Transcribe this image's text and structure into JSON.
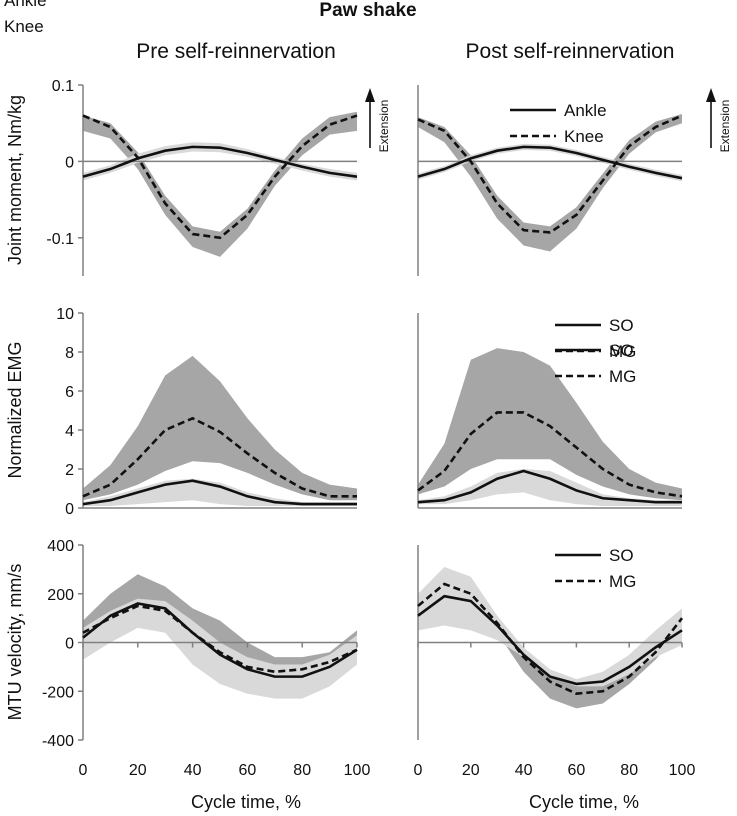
{
  "figure": {
    "title": "Paw shake",
    "column_titles": [
      "Pre self-reinnervation",
      "Post self-reinnervation"
    ],
    "xlabel": "Cycle time, %",
    "extension_label": "Extension"
  },
  "chart_data": [
    {
      "id": "moment-pre",
      "type": "line",
      "title": "Pre self-reinnervation",
      "ylabel": "Joint moment, Nm/kg",
      "ylim": [
        -0.15,
        0.1
      ],
      "yticks": [
        -0.1,
        0,
        0.1
      ],
      "ytick_labels": [
        "-0.1",
        "0",
        "0.1"
      ],
      "xlim": [
        0,
        100
      ],
      "xticks": [],
      "xtick_labels": [],
      "legend": "top-right",
      "series": [
        {
          "name": "Ankle",
          "style": "solid",
          "x": [
            0,
            10,
            20,
            30,
            40,
            50,
            60,
            70,
            80,
            90,
            100
          ],
          "y": [
            -0.02,
            -0.01,
            0.004,
            0.014,
            0.019,
            0.018,
            0.011,
            0.002,
            -0.007,
            -0.015,
            -0.02
          ],
          "band_color": "#d9d9d9",
          "band_upper": [
            -0.015,
            -0.005,
            0.01,
            0.02,
            0.025,
            0.024,
            0.016,
            0.006,
            -0.003,
            -0.01,
            -0.015
          ],
          "band_lower": [
            -0.025,
            -0.015,
            -0.002,
            0.008,
            0.013,
            0.012,
            0.006,
            -0.003,
            -0.012,
            -0.02,
            -0.025
          ]
        },
        {
          "name": "Knee",
          "style": "dashed",
          "x": [
            0,
            10,
            20,
            30,
            40,
            50,
            60,
            70,
            80,
            90,
            100
          ],
          "y": [
            0.06,
            0.045,
            0.005,
            -0.055,
            -0.095,
            -0.1,
            -0.07,
            -0.02,
            0.02,
            0.048,
            0.06
          ],
          "band_color": "#a6a6a6",
          "band_upper": [
            0.06,
            0.05,
            0.012,
            -0.045,
            -0.085,
            -0.092,
            -0.062,
            -0.012,
            0.03,
            0.058,
            0.065
          ],
          "band_lower": [
            0.04,
            0.03,
            -0.01,
            -0.07,
            -0.112,
            -0.125,
            -0.088,
            -0.032,
            0.008,
            0.035,
            0.04
          ]
        }
      ]
    },
    {
      "id": "moment-post",
      "type": "line",
      "title": "Post self-reinnervation",
      "ylabel": "",
      "ylim": [
        -0.15,
        0.1
      ],
      "yticks": [],
      "ytick_labels": [],
      "xlim": [
        0,
        100
      ],
      "xticks": [],
      "xtick_labels": [],
      "legend": "top-right",
      "series": [
        {
          "name": "Ankle",
          "style": "solid",
          "x": [
            0,
            10,
            20,
            30,
            40,
            50,
            60,
            70,
            80,
            90,
            100
          ],
          "y": [
            -0.02,
            -0.01,
            0.004,
            0.014,
            0.019,
            0.018,
            0.011,
            0.002,
            -0.007,
            -0.015,
            -0.022
          ],
          "band_color": "#d9d9d9",
          "band_upper": [
            -0.016,
            -0.006,
            0.008,
            0.018,
            0.023,
            0.022,
            0.015,
            0.006,
            -0.003,
            -0.011,
            -0.018
          ],
          "band_lower": [
            -0.024,
            -0.014,
            0.0,
            0.01,
            0.015,
            0.014,
            0.007,
            -0.002,
            -0.011,
            -0.019,
            -0.026
          ]
        },
        {
          "name": "Knee",
          "style": "dashed",
          "x": [
            0,
            10,
            20,
            30,
            40,
            50,
            60,
            70,
            80,
            90,
            100
          ],
          "y": [
            0.055,
            0.04,
            0.0,
            -0.055,
            -0.09,
            -0.093,
            -0.07,
            -0.025,
            0.02,
            0.045,
            0.06
          ],
          "band_color": "#a6a6a6",
          "band_upper": [
            0.058,
            0.045,
            0.008,
            -0.045,
            -0.08,
            -0.085,
            -0.06,
            -0.016,
            0.028,
            0.052,
            0.062
          ],
          "band_lower": [
            0.045,
            0.025,
            -0.02,
            -0.075,
            -0.11,
            -0.118,
            -0.088,
            -0.035,
            0.01,
            0.038,
            0.05
          ]
        }
      ]
    },
    {
      "id": "emg-pre",
      "type": "line",
      "title": "",
      "ylabel": "Normalized EMG",
      "ylim": [
        0,
        10
      ],
      "yticks": [
        0,
        2,
        4,
        6,
        8,
        10
      ],
      "ytick_labels": [
        "0",
        "2",
        "4",
        "6",
        "8",
        "10"
      ],
      "xlim": [
        0,
        100
      ],
      "xticks": [],
      "xtick_labels": [],
      "legend": "top-right",
      "series": [
        {
          "name": "SO",
          "style": "solid",
          "x": [
            0,
            10,
            20,
            30,
            40,
            50,
            60,
            70,
            80,
            90,
            100
          ],
          "y": [
            0.2,
            0.4,
            0.8,
            1.2,
            1.4,
            1.1,
            0.6,
            0.3,
            0.2,
            0.2,
            0.2
          ],
          "band_color": "#d9d9d9",
          "band_upper": [
            0.3,
            0.6,
            1.0,
            1.4,
            1.5,
            1.3,
            0.8,
            0.5,
            0.3,
            0.3,
            0.3
          ],
          "band_lower": [
            0.1,
            0.1,
            0.2,
            0.3,
            0.4,
            0.2,
            0.1,
            0.1,
            0.1,
            0.1,
            0.1
          ]
        },
        {
          "name": "MG",
          "style": "dashed",
          "x": [
            0,
            10,
            20,
            30,
            40,
            50,
            60,
            70,
            80,
            90,
            100
          ],
          "y": [
            0.6,
            1.2,
            2.5,
            4.0,
            4.6,
            3.9,
            2.8,
            1.8,
            1.0,
            0.6,
            0.6
          ],
          "band_color": "#a6a6a6",
          "band_upper": [
            1.0,
            2.2,
            4.2,
            6.8,
            7.8,
            6.5,
            4.6,
            3.0,
            1.8,
            1.2,
            1.0
          ],
          "band_lower": [
            0.4,
            0.7,
            1.2,
            1.9,
            2.4,
            2.3,
            1.8,
            1.2,
            0.7,
            0.4,
            0.4
          ]
        }
      ]
    },
    {
      "id": "emg-post",
      "type": "line",
      "title": "",
      "ylabel": "",
      "ylim": [
        0,
        10
      ],
      "yticks": [],
      "ytick_labels": [],
      "xlim": [
        0,
        100
      ],
      "xticks": [],
      "xtick_labels": [],
      "legend": "top-right",
      "series": [
        {
          "name": "SO",
          "style": "solid",
          "x": [
            0,
            10,
            20,
            30,
            40,
            50,
            60,
            70,
            80,
            90,
            100
          ],
          "y": [
            0.3,
            0.4,
            0.8,
            1.5,
            1.9,
            1.5,
            0.9,
            0.5,
            0.4,
            0.3,
            0.3
          ],
          "band_color": "#d9d9d9",
          "band_upper": [
            0.4,
            0.6,
            1.1,
            1.8,
            2.0,
            1.9,
            1.3,
            0.7,
            0.5,
            0.4,
            0.4
          ],
          "band_lower": [
            0.2,
            0.2,
            0.4,
            0.7,
            0.8,
            0.4,
            0.2,
            0.1,
            0.1,
            0.1,
            0.1
          ]
        },
        {
          "name": "MG",
          "style": "dashed",
          "x": [
            0,
            10,
            20,
            30,
            40,
            50,
            60,
            70,
            80,
            90,
            100
          ],
          "y": [
            0.9,
            1.9,
            3.8,
            4.9,
            4.9,
            4.2,
            3.1,
            2.0,
            1.2,
            0.8,
            0.6
          ],
          "band_color": "#a6a6a6",
          "band_upper": [
            1.2,
            3.3,
            7.6,
            8.2,
            8.0,
            7.3,
            5.4,
            3.4,
            2.0,
            1.3,
            1.0
          ],
          "band_lower": [
            0.7,
            1.1,
            2.0,
            2.5,
            2.5,
            2.5,
            1.7,
            1.1,
            0.7,
            0.5,
            0.4
          ]
        }
      ]
    },
    {
      "id": "velocity-pre",
      "type": "line",
      "title": "",
      "ylabel": "MTU velocity, mm/s",
      "ylim": [
        -400,
        400
      ],
      "yticks": [
        -400,
        -200,
        0,
        200,
        400
      ],
      "ytick_labels": [
        "-400",
        "-200",
        "0",
        "200",
        "400"
      ],
      "xlim": [
        0,
        100
      ],
      "xticks": [
        0,
        20,
        40,
        60,
        80,
        100
      ],
      "xtick_labels": [
        "0",
        "20",
        "40",
        "60",
        "80",
        "100"
      ],
      "legend": "none",
      "series": [
        {
          "name": "SO",
          "style": "solid",
          "x": [
            0,
            10,
            20,
            30,
            40,
            50,
            60,
            70,
            80,
            90,
            100
          ],
          "y": [
            20,
            110,
            160,
            140,
            40,
            -50,
            -110,
            -140,
            -140,
            -100,
            -30
          ],
          "band_color": "#d9d9d9",
          "band_upper": [
            60,
            130,
            180,
            170,
            90,
            0,
            -60,
            -90,
            -90,
            -50,
            30
          ],
          "band_lower": [
            -70,
            0,
            60,
            40,
            -90,
            -170,
            -210,
            -230,
            -230,
            -180,
            -90
          ]
        },
        {
          "name": "MG",
          "style": "dashed",
          "x": [
            0,
            10,
            20,
            30,
            40,
            50,
            60,
            70,
            80,
            90,
            100
          ],
          "y": [
            40,
            100,
            150,
            130,
            40,
            -40,
            -100,
            -120,
            -110,
            -80,
            -30
          ],
          "band_color": "#a6a6a6",
          "band_upper": [
            90,
            200,
            280,
            230,
            140,
            90,
            0,
            -60,
            -60,
            -40,
            50
          ],
          "band_lower": [
            -30,
            40,
            110,
            60,
            -20,
            -90,
            -130,
            -150,
            -140,
            -100,
            -60
          ]
        }
      ]
    },
    {
      "id": "velocity-post",
      "type": "line",
      "title": "",
      "ylabel": "",
      "ylim": [
        -400,
        400
      ],
      "yticks": [],
      "ytick_labels": [],
      "xlim": [
        0,
        100
      ],
      "xticks": [
        0,
        20,
        40,
        60,
        80,
        100
      ],
      "xtick_labels": [
        "0",
        "20",
        "40",
        "60",
        "80",
        "100"
      ],
      "legend": "top-right",
      "series": [
        {
          "name": "SO",
          "style": "solid",
          "x": [
            0,
            10,
            20,
            30,
            40,
            50,
            60,
            70,
            80,
            90,
            100
          ],
          "y": [
            110,
            190,
            170,
            70,
            -50,
            -140,
            -170,
            -160,
            -100,
            -20,
            50
          ],
          "band_color": "#d9d9d9",
          "band_upper": [
            200,
            310,
            270,
            110,
            -20,
            -110,
            -150,
            -120,
            -50,
            50,
            140
          ],
          "band_lower": [
            50,
            70,
            50,
            10,
            -60,
            -140,
            -180,
            -180,
            -130,
            -60,
            -10
          ]
        },
        {
          "name": "MG",
          "style": "dashed",
          "x": [
            0,
            10,
            20,
            30,
            40,
            50,
            60,
            70,
            80,
            90,
            100
          ],
          "y": [
            150,
            240,
            200,
            80,
            -60,
            -160,
            -210,
            -200,
            -140,
            -40,
            100
          ],
          "band_color": "#a6a6a6",
          "band_upper": [
            150,
            200,
            180,
            80,
            -30,
            -120,
            -150,
            -150,
            -90,
            0,
            120
          ],
          "band_lower": [
            110,
            180,
            160,
            40,
            -120,
            -230,
            -270,
            -250,
            -170,
            -70,
            60
          ]
        }
      ]
    }
  ]
}
